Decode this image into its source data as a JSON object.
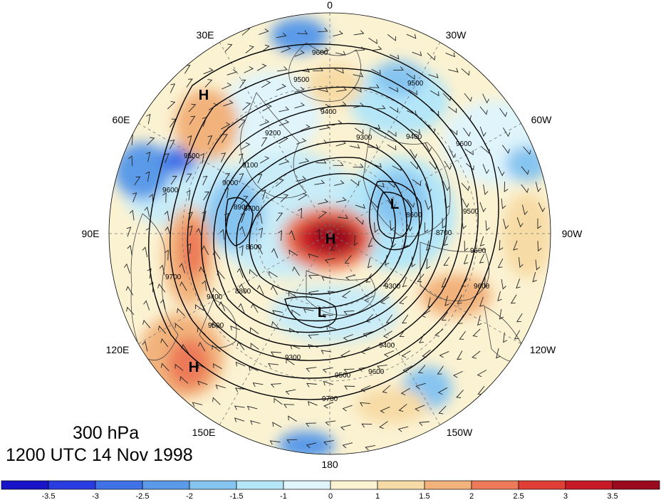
{
  "title": {
    "level": "300 hPa",
    "datetime": "1200 UTC 14 Nov 1998"
  },
  "longitude_labels": [
    {
      "text": "0",
      "lon": 0
    },
    {
      "text": "30W",
      "lon": -30
    },
    {
      "text": "60W",
      "lon": -60
    },
    {
      "text": "90W",
      "lon": -90
    },
    {
      "text": "120W",
      "lon": -120
    },
    {
      "text": "150W",
      "lon": -150
    },
    {
      "text": "180",
      "lon": 180
    },
    {
      "text": "150E",
      "lon": 150
    },
    {
      "text": "120E",
      "lon": 120
    },
    {
      "text": "90E",
      "lon": 90
    },
    {
      "text": "60E",
      "lon": 60
    },
    {
      "text": "30E",
      "lon": 30
    }
  ],
  "pressure_centers": [
    {
      "text": "H",
      "note": "north pole high"
    },
    {
      "text": "H",
      "note": "central Asia high"
    },
    {
      "text": "H",
      "note": "east Asia high"
    },
    {
      "text": "L",
      "note": "Hudson Bay low"
    },
    {
      "text": "L",
      "note": "Siberian low"
    }
  ],
  "contour_labels": [
    "9600",
    "9500",
    "9400",
    "9300",
    "9200",
    "9100",
    "9000",
    "8900",
    "8800",
    "8700",
    "8600",
    "9700"
  ],
  "colorbar": {
    "ticks": [
      "-3.5",
      "-3",
      "-2.5",
      "-2",
      "-1.5",
      "-1",
      "0",
      "1",
      "1.5",
      "2",
      "2.5",
      "3",
      "3.5"
    ],
    "colors": [
      "#1a14c8",
      "#2a3ce0",
      "#3f72e6",
      "#5a9ae8",
      "#86c4f0",
      "#b4e6f8",
      "#dff4fb",
      "#fbf2d2",
      "#f7dba6",
      "#f2b27c",
      "#ec7a58",
      "#e13e36",
      "#c81a26",
      "#9a0a1e"
    ]
  },
  "colors": {
    "contour": "#000000",
    "coast": "#444444",
    "wind": "#222222"
  }
}
